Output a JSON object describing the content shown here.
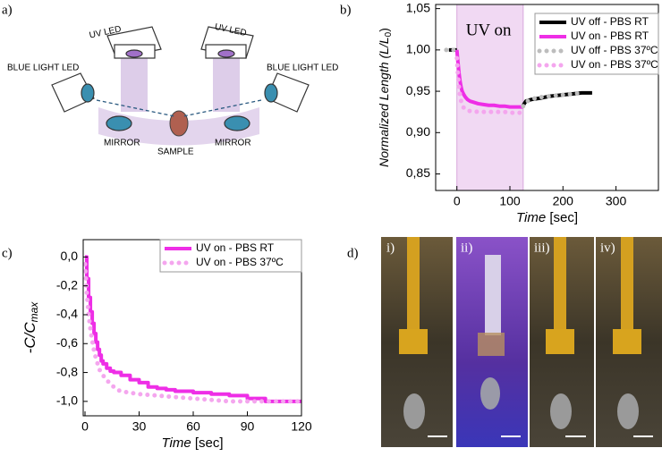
{
  "panel_labels": [
    "a)",
    "b)",
    "c)",
    "d)"
  ],
  "diagram": {
    "labels": [
      "UV LED",
      "UV LED",
      "BLUE LIGHT LED",
      "BLUE LIGHT LED",
      "MIRROR",
      "MIRROR",
      "SAMPLE"
    ]
  },
  "photos": {
    "labels": [
      "i)",
      "ii)",
      "iii)",
      "iv)"
    ]
  },
  "chart_data": [
    {
      "type": "line",
      "xlabel_parts": [
        "Time",
        " [sec]"
      ],
      "ylabel_parts": [
        "Normalized Length (",
        "L/L",
        "0",
        ")"
      ],
      "annotation": "UV on",
      "shade": [
        0,
        125
      ],
      "xlim": [
        -40,
        380
      ],
      "ylim": [
        0.83,
        1.055
      ],
      "xticks": [
        0,
        100,
        200,
        300
      ],
      "yticks": [
        {
          "value": 0.85,
          "label": "0,85"
        },
        {
          "value": 0.9,
          "label": "0,90"
        },
        {
          "value": 0.95,
          "label": "0,95"
        },
        {
          "value": 1.0,
          "label": "1,00"
        },
        {
          "value": 1.05,
          "label": "1,05"
        }
      ],
      "legend": "upper right",
      "series": [
        {
          "name": "UV off - PBS RT",
          "color": "#000000",
          "style": "solid",
          "x": [
            -15,
            -10,
            -5,
            0,
            null,
            125,
            130,
            140,
            150,
            160,
            175,
            190,
            205,
            220,
            235,
            250,
            255
          ],
          "values": [
            1.0,
            1.0,
            1.0,
            1.0,
            null,
            0.933,
            0.938,
            0.94,
            0.941,
            0.942,
            0.944,
            0.945,
            0.946,
            0.947,
            0.948,
            0.948,
            0.948
          ]
        },
        {
          "name": "UV on - PBS RT",
          "color": "#ee2ee6",
          "style": "solid",
          "x": [
            0,
            2,
            4,
            6,
            8,
            10,
            13,
            16,
            20,
            25,
            30,
            40,
            50,
            60,
            70,
            80,
            90,
            100,
            110,
            120,
            125
          ],
          "values": [
            1.0,
            0.985,
            0.972,
            0.962,
            0.955,
            0.95,
            0.946,
            0.943,
            0.94,
            0.938,
            0.937,
            0.935,
            0.934,
            0.933,
            0.933,
            0.932,
            0.932,
            0.931,
            0.931,
            0.931,
            0.931
          ]
        },
        {
          "name": "UV off - PBS 37ºC",
          "color": "#bdbdbd",
          "style": "dot",
          "x": [
            -20,
            -15,
            -10,
            -5,
            null,
            125,
            130,
            140,
            150,
            160,
            175,
            190,
            205,
            220,
            235,
            240
          ],
          "values": [
            1.0,
            1.0,
            1.0,
            1.0,
            null,
            0.932,
            0.937,
            0.94,
            0.942,
            0.943,
            0.944,
            0.945,
            0.946,
            0.947,
            0.948,
            0.948
          ]
        },
        {
          "name": "UV on - PBS 37ºC",
          "color": "#f4a6ee",
          "style": "dot",
          "x": [
            0,
            2,
            4,
            6,
            8,
            10,
            13,
            16,
            20,
            25,
            30,
            40,
            50,
            60,
            70,
            80,
            90,
            100,
            110,
            120
          ],
          "values": [
            0.99,
            0.97,
            0.955,
            0.945,
            0.938,
            0.933,
            0.93,
            0.928,
            0.927,
            0.926,
            0.926,
            0.925,
            0.925,
            0.925,
            0.925,
            0.925,
            0.925,
            0.924,
            0.924,
            0.924
          ]
        }
      ]
    },
    {
      "type": "line",
      "xlabel_parts": [
        "Time",
        " [sec]"
      ],
      "ylabel_parts": [
        "-C/C",
        "max"
      ],
      "xlim": [
        -1,
        120
      ],
      "ylim": [
        -1.1,
        0.12
      ],
      "xticks": [
        0,
        30,
        60,
        90,
        120
      ],
      "yticks": [
        {
          "value": 0,
          "label": "0,0"
        },
        {
          "value": -0.2,
          "label": "-0,2"
        },
        {
          "value": -0.4,
          "label": "-0,4"
        },
        {
          "value": -0.6,
          "label": "-0,6"
        },
        {
          "value": -0.8,
          "label": "-0,8"
        },
        {
          "value": -1.0,
          "label": "-1,0"
        }
      ],
      "legend": "upper right",
      "series": [
        {
          "name": "UV on - PBS RT",
          "color": "#ee2ee6",
          "style": "step",
          "x": [
            0,
            1,
            2,
            3,
            4,
            5,
            6,
            7,
            8,
            9,
            10,
            12,
            14,
            16,
            18,
            20,
            25,
            30,
            35,
            40,
            45,
            50,
            60,
            70,
            80,
            90,
            100,
            110,
            120
          ],
          "values": [
            0,
            -0.15,
            -0.28,
            -0.38,
            -0.46,
            -0.53,
            -0.59,
            -0.64,
            -0.68,
            -0.72,
            -0.74,
            -0.77,
            -0.79,
            -0.8,
            -0.8,
            -0.82,
            -0.85,
            -0.87,
            -0.9,
            -0.91,
            -0.92,
            -0.93,
            -0.94,
            -0.95,
            -0.96,
            -0.98,
            -1.0,
            -1.0,
            -1.0
          ]
        },
        {
          "name": "UV on - PBS 37ºC",
          "color": "#f4a6ee",
          "style": "dot",
          "x": [
            0,
            1,
            2,
            3,
            4,
            5,
            6,
            7,
            8,
            10,
            12,
            14,
            16,
            18,
            20,
            25,
            30,
            40,
            50,
            60,
            70,
            80,
            90,
            100,
            110,
            120
          ],
          "values": [
            -0.05,
            -0.25,
            -0.4,
            -0.5,
            -0.58,
            -0.65,
            -0.7,
            -0.74,
            -0.78,
            -0.82,
            -0.85,
            -0.88,
            -0.9,
            -0.92,
            -0.93,
            -0.94,
            -0.95,
            -0.96,
            -0.97,
            -0.98,
            -0.99,
            -1.0,
            -1.0,
            -1.0,
            -1.0,
            -1.0
          ]
        }
      ]
    }
  ]
}
